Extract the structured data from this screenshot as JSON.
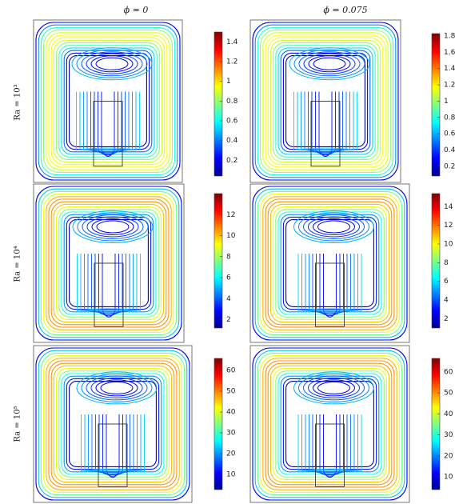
{
  "columns": [
    "ϕ = 0",
    "ϕ = 0.075"
  ],
  "rows": [
    "Ra = 10³",
    "Ra = 10⁴",
    "Ra = 10⁵"
  ],
  "panels": [
    {
      "colorbar": {
        "lim": [
          0.04,
          1.5
        ],
        "ticks": [
          0.2,
          0.4,
          0.6,
          0.8,
          1,
          1.2,
          1.4
        ]
      }
    },
    {
      "colorbar": {
        "lim": [
          0.08,
          1.83
        ],
        "ticks": [
          0.2,
          0.4,
          0.6,
          0.8,
          1,
          1.2,
          1.4,
          1.6,
          1.8
        ]
      }
    },
    {
      "colorbar": {
        "lim": [
          1.2,
          14
        ],
        "ticks": [
          2,
          4,
          6,
          8,
          10,
          12
        ]
      }
    },
    {
      "colorbar": {
        "lim": [
          1,
          15.4
        ],
        "ticks": [
          2,
          4,
          6,
          8,
          10,
          12,
          14
        ]
      }
    },
    {
      "colorbar": {
        "lim": [
          2.7,
          65.8
        ],
        "ticks": [
          10,
          20,
          30,
          40,
          50,
          60
        ]
      }
    },
    {
      "colorbar": {
        "lim": [
          4,
          66.4
        ],
        "ticks": [
          10,
          20,
          30,
          40,
          50,
          60
        ]
      }
    }
  ]
}
